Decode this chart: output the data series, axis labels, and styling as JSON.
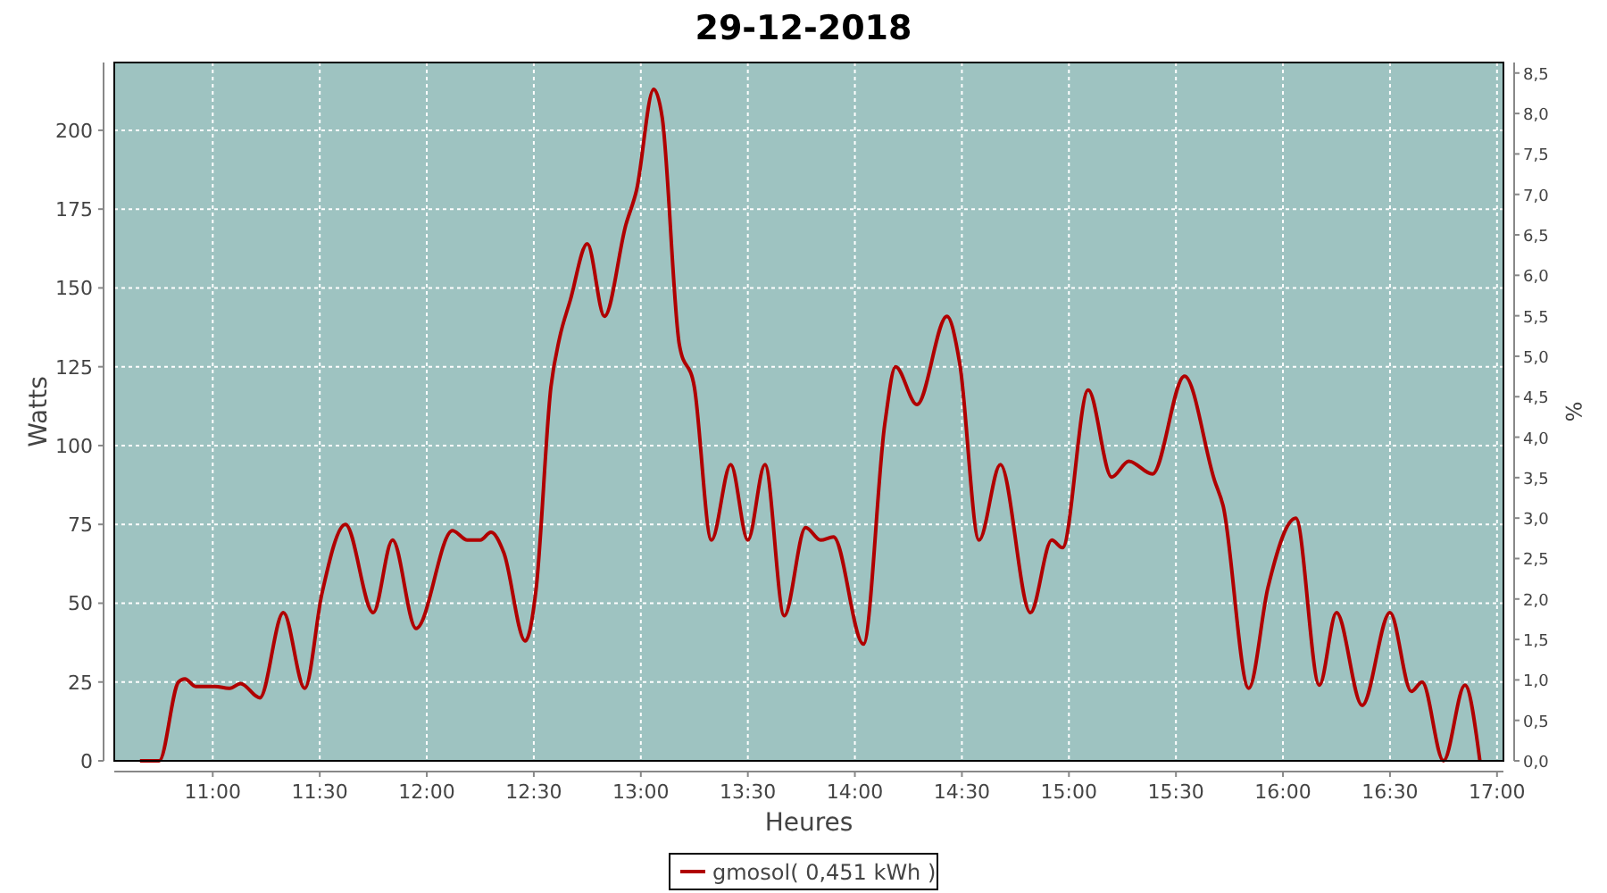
{
  "chart_data": {
    "type": "line",
    "title": "29-12-2018",
    "xlabel": "Heures",
    "ylabel": "Watts",
    "y2label": "%",
    "x": [
      10.66,
      10.75,
      10.84,
      10.87,
      10.92,
      11.01,
      11.08,
      11.13,
      11.22,
      11.33,
      11.43,
      11.51,
      11.62,
      11.75,
      11.84,
      11.95,
      12.12,
      12.19,
      12.25,
      12.3,
      12.36,
      12.46,
      12.51,
      12.58,
      12.62,
      12.67,
      12.75,
      12.83,
      12.93,
      12.98,
      13.06,
      13.1,
      13.18,
      13.25,
      13.33,
      13.42,
      13.5,
      13.58,
      13.67,
      13.77,
      13.84,
      13.9,
      14.04,
      14.14,
      14.19,
      14.29,
      14.43,
      14.49,
      14.58,
      14.68,
      14.82,
      14.92,
      14.97,
      15.09,
      15.2,
      15.28,
      15.39,
      15.54,
      15.68,
      15.72,
      15.84,
      15.93,
      16.06,
      16.17,
      16.25,
      16.37,
      16.5,
      16.6,
      16.65,
      16.75,
      16.85,
      16.92
    ],
    "series": [
      {
        "name": "gmosol( 0,451 kWh )",
        "color": "#b00000",
        "values": [
          0,
          0,
          25,
          26,
          23.6,
          23.6,
          23,
          24.5,
          20,
          47,
          23,
          53,
          75,
          47,
          70,
          42,
          73,
          70,
          70,
          72.5,
          66,
          38,
          54,
          118.6,
          134,
          146,
          164,
          141,
          170,
          181,
          213,
          204,
          132,
          118.6,
          70,
          94,
          70,
          94,
          46,
          74,
          70,
          71,
          37,
          107,
          125,
          113,
          141,
          126,
          70,
          94,
          47,
          70,
          67.6,
          117.6,
          90,
          95,
          91,
          122,
          89,
          81,
          23,
          55,
          77,
          24,
          47,
          17.6,
          47,
          22,
          25,
          0,
          24,
          0
        ]
      }
    ],
    "xlim": [
      10.54,
      17.03
    ],
    "xticks": [
      {
        "value": 11,
        "label": "11:00"
      },
      {
        "value": 11.5,
        "label": "11:30"
      },
      {
        "value": 12,
        "label": "12:00"
      },
      {
        "value": 12.5,
        "label": "12:30"
      },
      {
        "value": 13,
        "label": "13:00"
      },
      {
        "value": 13.5,
        "label": "13:30"
      },
      {
        "value": 14,
        "label": "14:00"
      },
      {
        "value": 14.5,
        "label": "14:30"
      },
      {
        "value": 15,
        "label": "15:00"
      },
      {
        "value": 15.5,
        "label": "15:30"
      },
      {
        "value": 16,
        "label": "16:00"
      },
      {
        "value": 16.5,
        "label": "16:30"
      },
      {
        "value": 17,
        "label": "17:00"
      }
    ],
    "ylim": [
      0,
      221.5
    ],
    "yticks": [
      0,
      25,
      50,
      75,
      100,
      125,
      150,
      175,
      200
    ],
    "y2lim": [
      0,
      8.63
    ],
    "y2ticks": [
      {
        "value": 0,
        "label": "0,0"
      },
      {
        "value": 0.5,
        "label": "0,5"
      },
      {
        "value": 1,
        "label": "1,0"
      },
      {
        "value": 1.5,
        "label": "1,5"
      },
      {
        "value": 2,
        "label": "2,0"
      },
      {
        "value": 2.5,
        "label": "2,5"
      },
      {
        "value": 3,
        "label": "3,0"
      },
      {
        "value": 3.5,
        "label": "3,5"
      },
      {
        "value": 4,
        "label": "4,0"
      },
      {
        "value": 4.5,
        "label": "4,5"
      },
      {
        "value": 5,
        "label": "5,0"
      },
      {
        "value": 5.5,
        "label": "5,5"
      },
      {
        "value": 6,
        "label": "6,0"
      },
      {
        "value": 6.5,
        "label": "6,5"
      },
      {
        "value": 7,
        "label": "7,0"
      },
      {
        "value": 7.5,
        "label": "7,5"
      },
      {
        "value": 8,
        "label": "8,0"
      },
      {
        "value": 8.5,
        "label": "8,5"
      }
    ],
    "grid": true,
    "legend": "bottom"
  }
}
